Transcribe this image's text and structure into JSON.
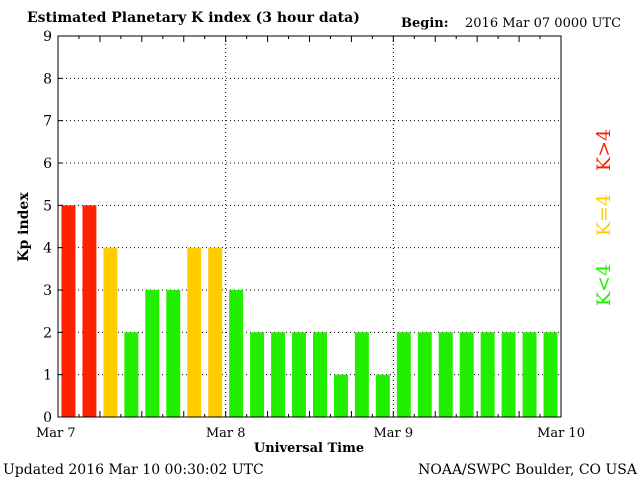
{
  "header": {
    "title": "Estimated Planetary K index (3 hour data)",
    "begin_label": "Begin:",
    "begin_value": "2016 Mar 07 0000 UTC"
  },
  "footer": {
    "updated": "Updated 2016 Mar 10 00:30:02 UTC",
    "source": "NOAA/SWPC Boulder, CO USA"
  },
  "legend": {
    "items": [
      {
        "label": "K>4",
        "color": "#ff2200"
      },
      {
        "label": "K=4",
        "color": "#ffcc00"
      },
      {
        "label": "K<4",
        "color": "#22ee00"
      }
    ]
  },
  "chart_data": {
    "type": "bar",
    "title": "Estimated Planetary K index (3 hour data)",
    "xlabel": "Universal Time",
    "ylabel": "Kp index",
    "ylim": [
      0,
      9
    ],
    "xlim_hours": [
      0,
      72
    ],
    "y_ticks": [
      "0",
      "1",
      "2",
      "3",
      "4",
      "5",
      "6",
      "7",
      "8",
      "9"
    ],
    "x_ticks": [
      {
        "label": "Mar 7",
        "hour": 0
      },
      {
        "label": "Mar 8",
        "hour": 24
      },
      {
        "label": "Mar 9",
        "hour": 48
      },
      {
        "label": "Mar 10",
        "hour": 72
      }
    ],
    "interval_hours": 3,
    "values": [
      5,
      5,
      4,
      2,
      3,
      3,
      4,
      4,
      3,
      2,
      2,
      2,
      2,
      1,
      2,
      1,
      2,
      2,
      2,
      2,
      2,
      2,
      2,
      2
    ],
    "colors": {
      "above": "#ff2200",
      "equal": "#ffcc00",
      "below": "#22ee00"
    },
    "threshold": 4,
    "grid": true
  }
}
